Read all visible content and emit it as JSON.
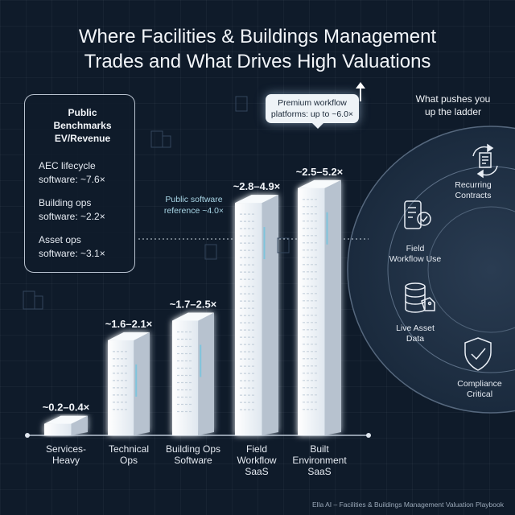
{
  "title": {
    "line1": "Where Facilities & Buildings Management",
    "line2": "Trades and What Drives High Valuations"
  },
  "benchmarks": {
    "heading_line1": "Public Benchmarks",
    "heading_line2": "EV/Revenue",
    "items": [
      {
        "line1": "AEC lifecycle",
        "line2": "software: ~7.6×"
      },
      {
        "line1": "Building ops",
        "line2": "software: ~2.2×"
      },
      {
        "line1": "Asset ops",
        "line2": "software: ~3.1×"
      }
    ]
  },
  "reference": {
    "line1": "Public software",
    "line2": "reference ~4.0×",
    "value": 4.0
  },
  "callout": {
    "line1": "Premium workflow",
    "line2": "platforms: up to ~6.0×",
    "value": 6.0
  },
  "drivers": {
    "title_line1": "What pushes you",
    "title_line2": "up the ladder",
    "items": [
      {
        "line1": "Recurring",
        "line2": "Contracts",
        "icon": "recurring-document-icon"
      },
      {
        "line1": "Field",
        "line2": "Workflow Use",
        "icon": "mobile-checklist-icon"
      },
      {
        "line1": "Live Asset",
        "line2": "Data",
        "icon": "database-tag-icon"
      },
      {
        "line1": "Compliance",
        "line2": "Critical",
        "icon": "shield-check-icon"
      }
    ]
  },
  "chart_data": {
    "type": "bar",
    "title": "Where Facilities & Buildings Management Trades and What Drives High Valuations",
    "categories": [
      {
        "line1": "Services-",
        "line2": "Heavy",
        "line3": ""
      },
      {
        "line1": "Technical",
        "line2": "Ops",
        "line3": ""
      },
      {
        "line1": "Building Ops",
        "line2": "Software",
        "line3": ""
      },
      {
        "line1": "Field",
        "line2": "Workflow",
        "line3": "SaaS"
      },
      {
        "line1": "Built",
        "line2": "Environment",
        "line3": "SaaS"
      }
    ],
    "range_labels": [
      "~0.2–0.4×",
      "~1.6–2.1×",
      "~1.7–2.5×",
      "~2.8–4.9×",
      "~2.5–5.2×"
    ],
    "ranges": [
      [
        0.2,
        0.4
      ],
      [
        1.6,
        2.1
      ],
      [
        1.7,
        2.5
      ],
      [
        2.8,
        4.9
      ],
      [
        2.5,
        5.2
      ]
    ],
    "reference_line": 4.0,
    "premium_max": 6.0,
    "xlabel": "",
    "ylabel": "",
    "colors": {
      "bar": "#eef3f8",
      "bar_side": "#b7c2cf",
      "accent": "#7fc4dc"
    }
  },
  "footer": "Ella AI – Facilities & Buildings Management Valuation Playbook"
}
